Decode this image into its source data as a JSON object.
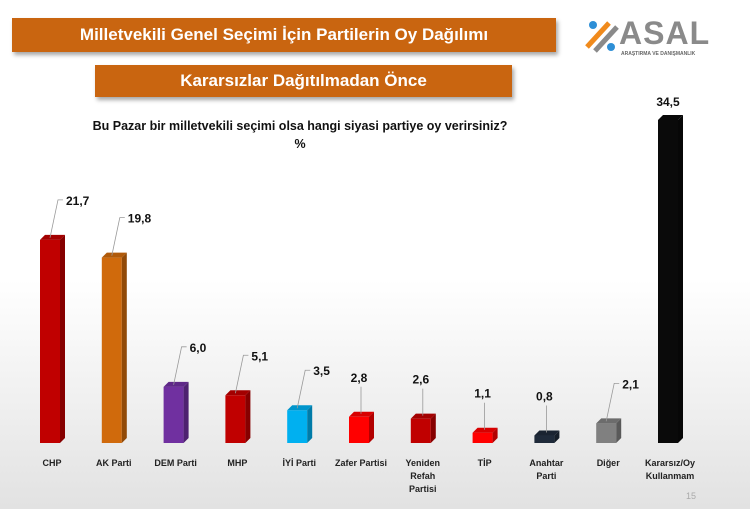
{
  "header": {
    "title": "Milletvekili Genel Seçimi İçin Partilerin Oy Dağılımı",
    "subtitle": "Kararsızlar Dağıtılmadan Önce"
  },
  "logo": {
    "name": "ASAL",
    "tagline": "ARAŞTIRMA VE DANIŞMANLIK"
  },
  "page_number": "15",
  "chart_data": {
    "type": "bar",
    "title": "Bu Pazar bir milletvekili seçimi olsa hangi siyasi partiye oy verirsiniz?",
    "unit": "%",
    "categories": [
      "CHP",
      "AK Parti",
      "DEM Parti",
      "MHP",
      "İYİ Parti",
      "Zafer Partisi",
      "Yeniden Refah Partisi",
      "TİP",
      "Anahtar Parti",
      "Diğer",
      "Kararsız/Oy Kullanmam"
    ],
    "values": [
      21.7,
      19.8,
      6.0,
      5.1,
      3.5,
      2.8,
      2.6,
      1.1,
      0.8,
      2.1,
      34.5
    ],
    "value_labels": [
      "21,7",
      "19,8",
      "6,0",
      "5,1",
      "3,5",
      "2,8",
      "2,6",
      "1,1",
      "0,8",
      "2,1",
      "34,5"
    ],
    "colors": [
      "#c00000",
      "#d06a0c",
      "#7030a0",
      "#c00000",
      "#00b0f0",
      "#ff0000",
      "#c00000",
      "#ff0000",
      "#1f2a3a",
      "#808080",
      "#0a0a0a"
    ],
    "ylim": [
      0,
      34.5
    ],
    "grid": false,
    "legend": "none"
  }
}
